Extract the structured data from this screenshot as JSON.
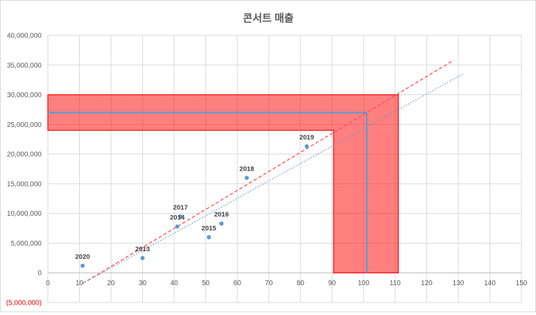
{
  "chart_data": {
    "type": "scatter",
    "title": "콘서트 매출",
    "xlabel": "",
    "ylabel": "",
    "xlim": [
      0,
      150
    ],
    "ylim": [
      -5000000,
      40000000
    ],
    "x_ticks": [
      "0",
      "10",
      "20",
      "30",
      "40",
      "50",
      "60",
      "70",
      "80",
      "90",
      "100",
      "110",
      "120",
      "130",
      "140",
      "150"
    ],
    "y_ticks": [
      {
        "value": 40000000,
        "label": "40,000,000"
      },
      {
        "value": 35000000,
        "label": "35,000,000"
      },
      {
        "value": 30000000,
        "label": "30,000,000"
      },
      {
        "value": 25000000,
        "label": "25,000,000"
      },
      {
        "value": 20000000,
        "label": "20,000,000"
      },
      {
        "value": 15000000,
        "label": "15,000,000"
      },
      {
        "value": 10000000,
        "label": "10,000,000"
      },
      {
        "value": 5000000,
        "label": "5,000,000"
      },
      {
        "value": 0,
        "label": "0"
      },
      {
        "value": -5000000,
        "label": "(5,000,000)"
      }
    ],
    "grid": true,
    "legend": "none",
    "points": [
      {
        "label": "2013",
        "x": 30,
        "y": 2500000
      },
      {
        "label": "2014",
        "x": 41,
        "y": 7800000
      },
      {
        "label": "2015",
        "x": 51,
        "y": 6000000
      },
      {
        "label": "2016",
        "x": 55,
        "y": 8300000
      },
      {
        "label": "2017",
        "x": 42,
        "y": 9500000
      },
      {
        "label": "2018",
        "x": 63,
        "y": 16000000
      },
      {
        "label": "2019",
        "x": 82,
        "y": 21300000
      },
      {
        "label": "2020",
        "x": 11,
        "y": 1200000
      }
    ],
    "trendlines": [
      {
        "style": "dashed",
        "color": "#ff4d4d",
        "from": [
          11,
          -1800000
        ],
        "to": [
          128.5,
          35800000
        ]
      },
      {
        "style": "dotted",
        "color": "#5b9bd5",
        "from": [
          11,
          -1800000
        ],
        "to": [
          131.5,
          33500000
        ]
      }
    ],
    "highlight": {
      "color": "#ff0000",
      "fill_opacity": 0.5,
      "horizontal_band": {
        "x": [
          0,
          111
        ],
        "y": [
          24000000,
          30000000
        ]
      },
      "vertical_band": {
        "x": [
          90.5,
          111
        ],
        "y": [
          0,
          24000000
        ]
      },
      "crosshair": {
        "x": 101,
        "y": 27000000,
        "color": "#5b9bd5"
      }
    },
    "colors": {
      "points": "#5b9bd5",
      "negative_tick": "#ff0000"
    }
  }
}
